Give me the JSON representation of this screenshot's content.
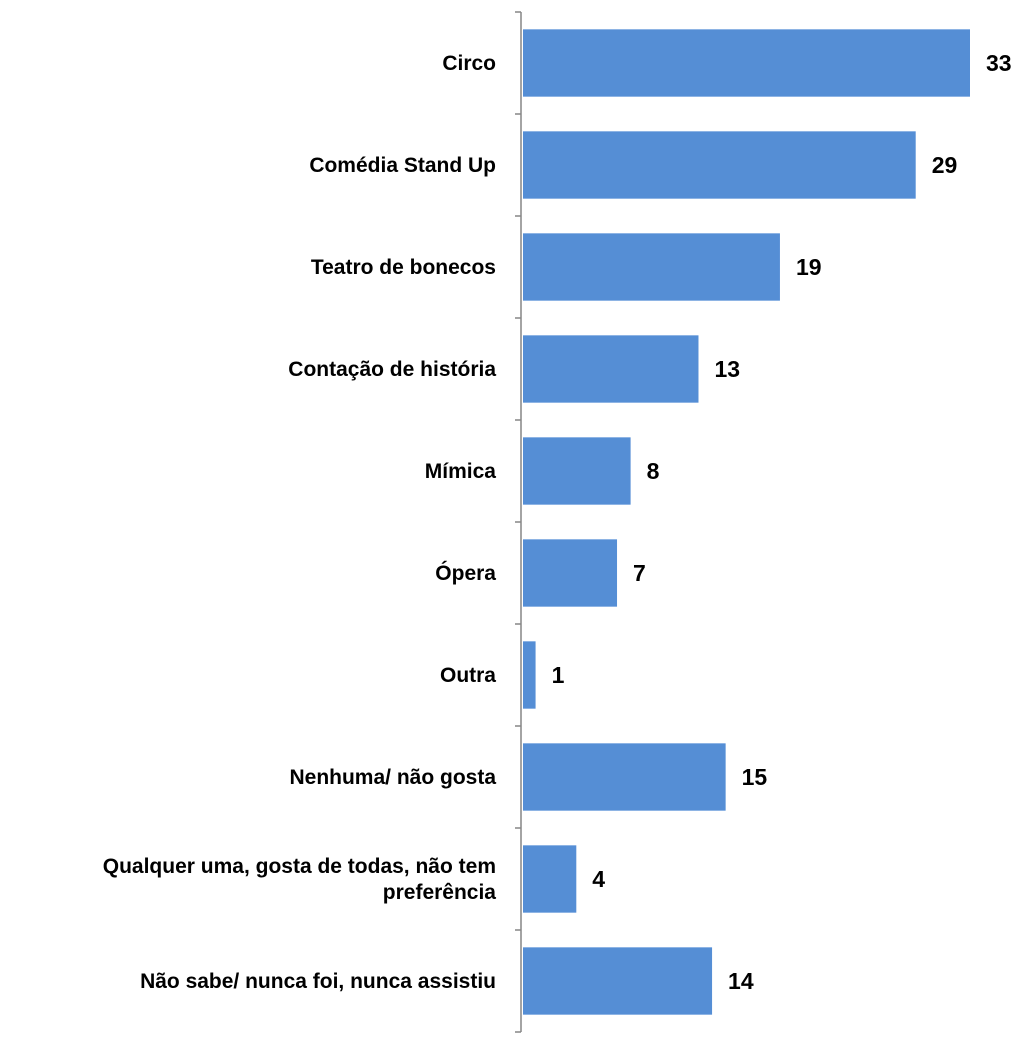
{
  "chart_data": {
    "type": "bar",
    "orientation": "horizontal",
    "categories": [
      [
        "Circo"
      ],
      [
        "Comédia Stand Up"
      ],
      [
        "Teatro de bonecos"
      ],
      [
        "Contação de história"
      ],
      [
        "Mímica"
      ],
      [
        "Ópera"
      ],
      [
        "Outra"
      ],
      [
        "Nenhuma/ não gosta"
      ],
      [
        "Qualquer uma, gosta de todas, não tem",
        "preferência"
      ],
      [
        "Não sabe/ nunca foi, nunca assistiu"
      ]
    ],
    "values": [
      33,
      29,
      19,
      13,
      8,
      7,
      1,
      15,
      4,
      14
    ],
    "data_labels": [
      "33",
      "29",
      "19",
      "13",
      "8",
      "7",
      "1",
      "15",
      "4",
      "14"
    ],
    "xlim": [
      0,
      33
    ],
    "bar_color": "#558ed5",
    "title": "",
    "xlabel": "",
    "ylabel": "",
    "grid": false,
    "legend": "none"
  }
}
